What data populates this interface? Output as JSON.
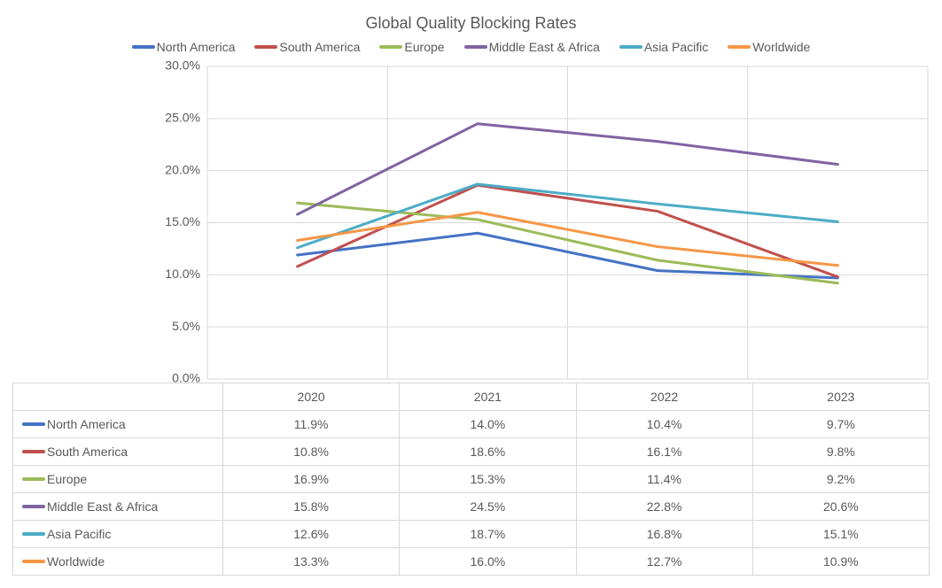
{
  "chart": {
    "type": "line",
    "title": "Global Quality Blocking Rates",
    "title_fontsize": 18,
    "title_color": "#595959",
    "background_color": "#ffffff",
    "plot_background": "#ffffff",
    "grid_color": "#d9d9d9",
    "axis_color": "#bfbfbf",
    "border_color": "#d9d9d9",
    "text_color": "#595959",
    "label_fontsize": 14,
    "line_width": 3,
    "categories": [
      "2020",
      "2021",
      "2022",
      "2023"
    ],
    "y_axis": {
      "min": 0.0,
      "max": 30.0,
      "tick_step": 5.0,
      "ticks": [
        0.0,
        5.0,
        10.0,
        15.0,
        20.0,
        25.0,
        30.0
      ],
      "tick_format": "percent1",
      "grid": true
    },
    "x_axis": {
      "grid": true
    },
    "series": [
      {
        "name": "North America",
        "color": "#4472c4",
        "values": [
          11.9,
          14.0,
          10.4,
          9.7
        ]
      },
      {
        "name": "South America",
        "color": "#c0504d",
        "values": [
          10.8,
          18.6,
          16.1,
          9.8
        ]
      },
      {
        "name": "Europe",
        "color": "#9bbb59",
        "values": [
          16.9,
          15.3,
          11.4,
          9.2
        ]
      },
      {
        "name": "Middle East & Africa",
        "color": "#8064a2",
        "values": [
          15.8,
          24.5,
          22.8,
          20.6
        ]
      },
      {
        "name": "Asia Pacific",
        "color": "#4bacc6",
        "values": [
          12.6,
          18.7,
          16.8,
          15.1
        ]
      },
      {
        "name": "Worldwide",
        "color": "#f79646",
        "values": [
          13.3,
          16.0,
          12.7,
          10.9
        ]
      }
    ]
  }
}
